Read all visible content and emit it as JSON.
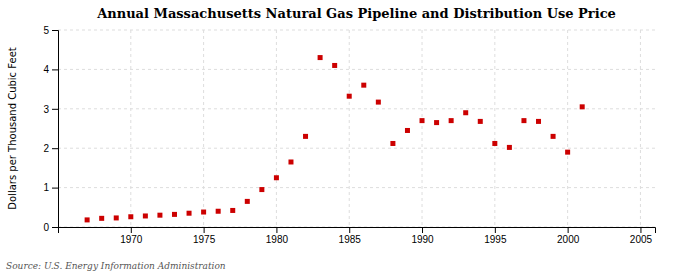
{
  "chart_data": {
    "type": "scatter",
    "title": "Annual Massachusetts Natural Gas Pipeline and Distribution Use Price",
    "ylabel": "Dollars per Thousand Cubic Feet",
    "annotations": [
      "Source: U.S. Energy Information Administration"
    ],
    "x": [
      1967,
      1968,
      1969,
      1970,
      1971,
      1972,
      1973,
      1974,
      1975,
      1976,
      1977,
      1978,
      1979,
      1980,
      1981,
      1982,
      1983,
      1984,
      1985,
      1986,
      1987,
      1988,
      1989,
      1990,
      1991,
      1992,
      1993,
      1994,
      1995,
      1996,
      1997,
      1998,
      1999,
      2000,
      2001
    ],
    "values": [
      0.18,
      0.22,
      0.23,
      0.26,
      0.28,
      0.3,
      0.32,
      0.35,
      0.38,
      0.4,
      0.42,
      0.65,
      0.95,
      1.25,
      1.65,
      2.3,
      4.3,
      4.1,
      3.32,
      3.6,
      3.17,
      2.12,
      2.45,
      2.7,
      2.65,
      2.7,
      2.9,
      2.68,
      2.12,
      2.02,
      2.7,
      2.68,
      2.3,
      1.9,
      3.05
    ],
    "color": "#cc0000",
    "marker": "square",
    "xlim": [
      1965,
      2006
    ],
    "ylim": [
      0,
      5
    ],
    "xticks": [
      1970,
      1975,
      1980,
      1985,
      1990,
      1995,
      2000,
      2005
    ],
    "yticks": [
      0,
      1,
      2,
      3,
      4,
      5
    ],
    "grid": true
  }
}
